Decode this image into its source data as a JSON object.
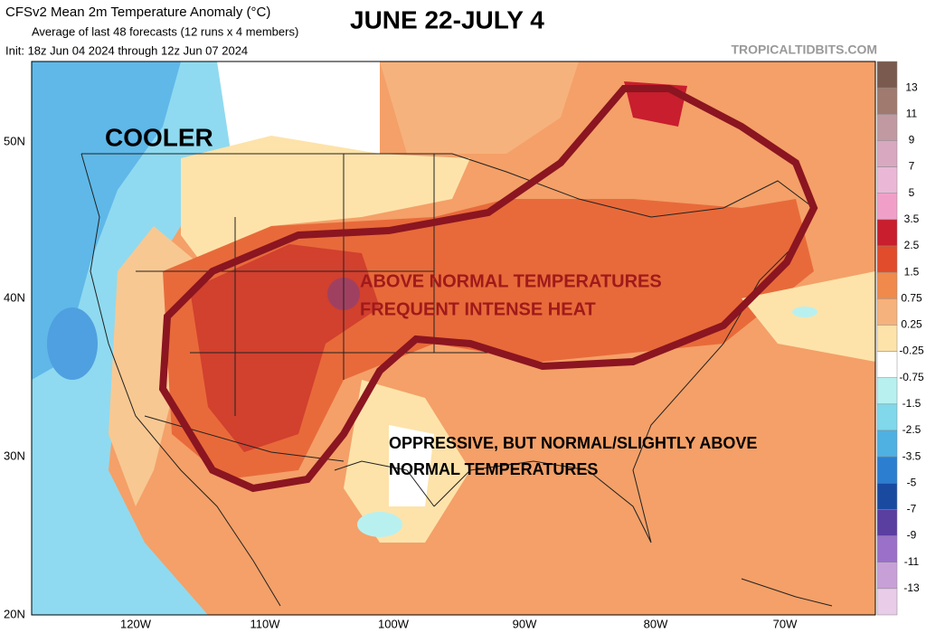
{
  "header": {
    "title": "CFSv2 Mean 2m Temperature Anomaly (°C)",
    "subtitle": "Average of last 48 forecasts (12 runs x 4 members)",
    "init": "Init: 18z Jun 04 2024 through 12z Jun 07 2024",
    "headline": "JUNE 22-JULY 4",
    "watermark": "TROPICALTIDBITS.COM"
  },
  "annotations": {
    "cooler": "COOLER",
    "above_line1": "ABOVE NORMAL TEMPERATURES",
    "above_line2": "FREQUENT INTENSE HEAT",
    "oppressive_line1": "OPPRESSIVE, BUT NORMAL/SLIGHTLY ABOVE",
    "oppressive_line2": "NORMAL TEMPERATURES"
  },
  "axes": {
    "lat_labels": [
      "50N",
      "40N",
      "30N",
      "20N"
    ],
    "lon_labels": [
      "120W",
      "110W",
      "100W",
      "90W",
      "80W",
      "70W"
    ]
  },
  "legend": {
    "labels": [
      "13",
      "11",
      "9",
      "7",
      "5",
      "3.5",
      "2.5",
      "1.5",
      "0.75",
      "0.25",
      "-0.25",
      "-0.75",
      "-1.5",
      "-2.5",
      "-3.5",
      "-5",
      "-7",
      "-9",
      "-11",
      "-13"
    ],
    "colors": [
      "#7a5a4e",
      "#a07a6e",
      "#c09aa0",
      "#d8a8c0",
      "#eab8d6",
      "#f0a0c8",
      "#c81e2e",
      "#e04c2c",
      "#f08a4c",
      "#f6b27c",
      "#fde3aa",
      "#ffffff",
      "#b8f0f0",
      "#80d8ea",
      "#4fb0e2",
      "#2c7ed0",
      "#1a4aa0",
      "#5a3ea0",
      "#9a70c8",
      "#c8a0d8",
      "#e8cce8"
    ]
  }
}
